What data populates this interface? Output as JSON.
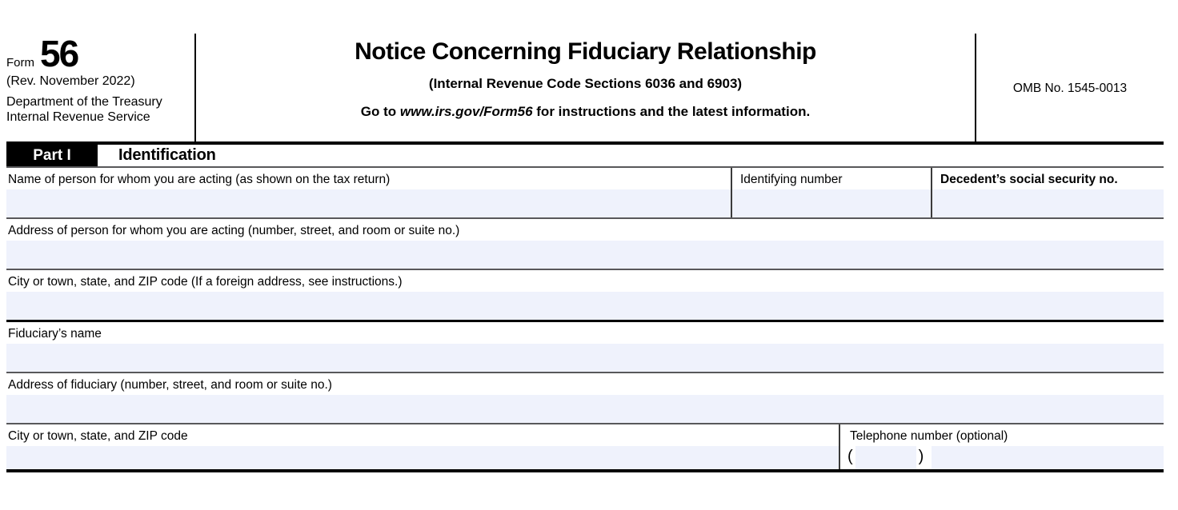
{
  "header": {
    "form_word": "Form",
    "form_number": "56",
    "revision": "(Rev. November 2022)",
    "agency_line1": "Department of the Treasury",
    "agency_line2": "Internal Revenue Service",
    "title": "Notice Concerning Fiduciary Relationship",
    "subtitle": "(Internal Revenue Code Sections 6036 and 6903)",
    "goto_prefix": "Go to ",
    "goto_url": "www.irs.gov/Form56",
    "goto_suffix": " for instructions and the latest information.",
    "omb": "OMB No. 1545-0013"
  },
  "part1": {
    "label": "Part I",
    "title": "Identification"
  },
  "fields": {
    "name_acting_label": "Name of person for whom you are acting (as shown on the tax return)",
    "identifying_number_label": "Identifying number",
    "decedent_ssn_label": "Decedent’s social security no.",
    "address_acting_label": "Address of person for whom you are acting (number, street, and room or suite no.)",
    "city_acting_label": "City or town, state, and ZIP code (If a foreign address, see instructions.)",
    "fiduciary_name_label": "Fiduciary’s name",
    "fiduciary_address_label": "Address of fiduciary (number, street, and room or suite no.)",
    "fiduciary_city_label": "City or town, state, and ZIP code",
    "telephone_label": "Telephone number (optional)",
    "phone_open_paren": "(",
    "phone_close_paren": ")"
  },
  "inputs": {
    "name_acting": "",
    "identifying_number": "",
    "decedent_ssn": "",
    "address_acting": "",
    "city_acting": "",
    "fiduciary_name": "",
    "fiduciary_address": "",
    "fiduciary_city": "",
    "phone_area_code": "",
    "phone_number": ""
  },
  "colors": {
    "field_fill": "#eff2fc",
    "separator_gray": "#58585a",
    "separator_black": "#000000"
  }
}
